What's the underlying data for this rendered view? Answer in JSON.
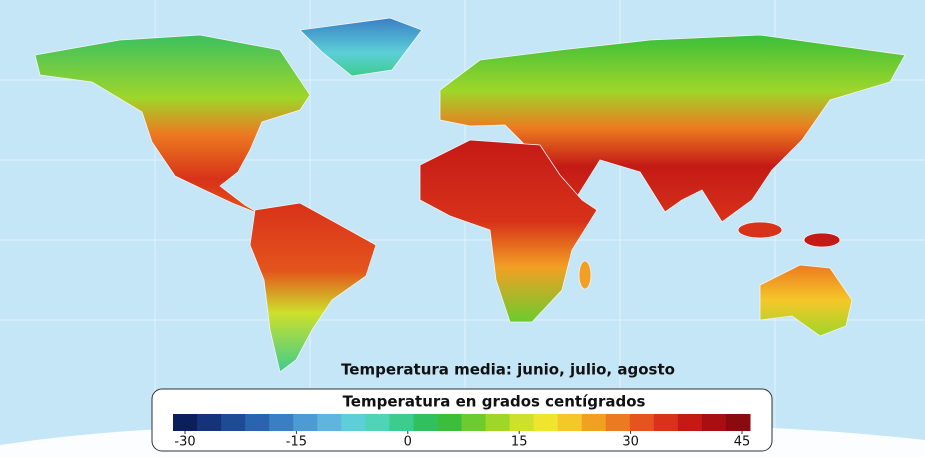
{
  "map": {
    "title": "Temperatura media: junio, julio, agosto",
    "legend": {
      "title": "Temperatura en grados centígrados",
      "range": [
        -30,
        45
      ],
      "ticks": [
        -30,
        -15,
        0,
        15,
        30,
        45
      ],
      "colors": [
        "#0a1f5c",
        "#14337a",
        "#1f4b96",
        "#2a64b0",
        "#3a7fc4",
        "#4d9bd4",
        "#5fb5df",
        "#5ccfd8",
        "#4fd4b8",
        "#3dcc8e",
        "#2fc060",
        "#3bbf3a",
        "#6ccb2e",
        "#9fd62a",
        "#cde02c",
        "#f0e52e",
        "#f5c72a",
        "#f2a024",
        "#ec7a20",
        "#e4541c",
        "#d8321a",
        "#c41a16",
        "#a80f12",
        "#8a0a0e"
      ]
    }
  }
}
